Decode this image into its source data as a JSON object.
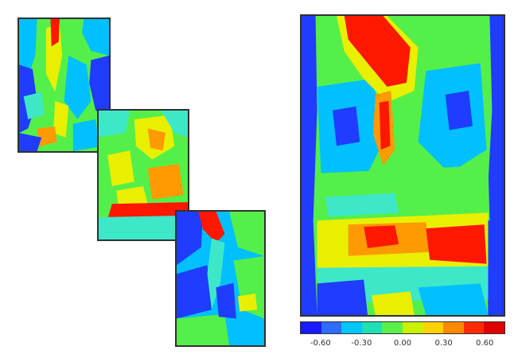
{
  "colorbar": {
    "colors": [
      "#1a1aff",
      "#2e6bff",
      "#00c8ff",
      "#1ee0b0",
      "#5af04a",
      "#c8f000",
      "#ffd200",
      "#ff8a00",
      "#ff2a00",
      "#e00000"
    ],
    "tick_labels": [
      "-0.60",
      "-0.30",
      "0.00",
      "0.30",
      "0.60"
    ]
  },
  "palette": {
    "blue": "#1f3cff",
    "light_blue": "#00c0ff",
    "cyan": "#3de8c8",
    "green": "#55ef4a",
    "yellow": "#e8f000",
    "orange": "#ff9a00",
    "red": "#ff1800"
  }
}
